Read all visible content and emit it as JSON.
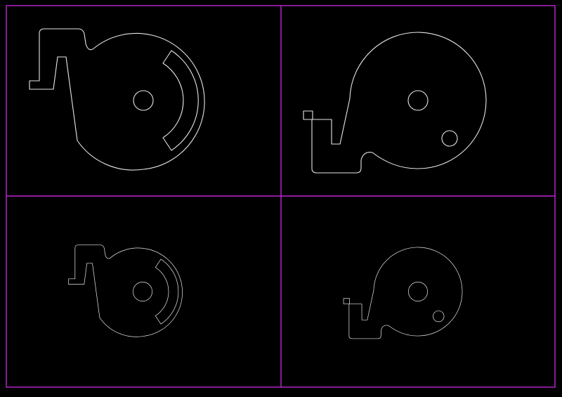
{
  "colors": {
    "background": "#000000",
    "frame": "#c026d3",
    "outline": "#e6e6e6"
  },
  "viewports": [
    {
      "position": "top-left",
      "part": "cam-with-arc-slot",
      "scale": "large"
    },
    {
      "position": "top-right",
      "part": "cam-with-offset-hole",
      "scale": "large"
    },
    {
      "position": "bottom-left",
      "part": "cam-with-arc-slot",
      "scale": "small"
    },
    {
      "position": "bottom-right",
      "part": "cam-with-offset-hole",
      "scale": "small"
    }
  ]
}
